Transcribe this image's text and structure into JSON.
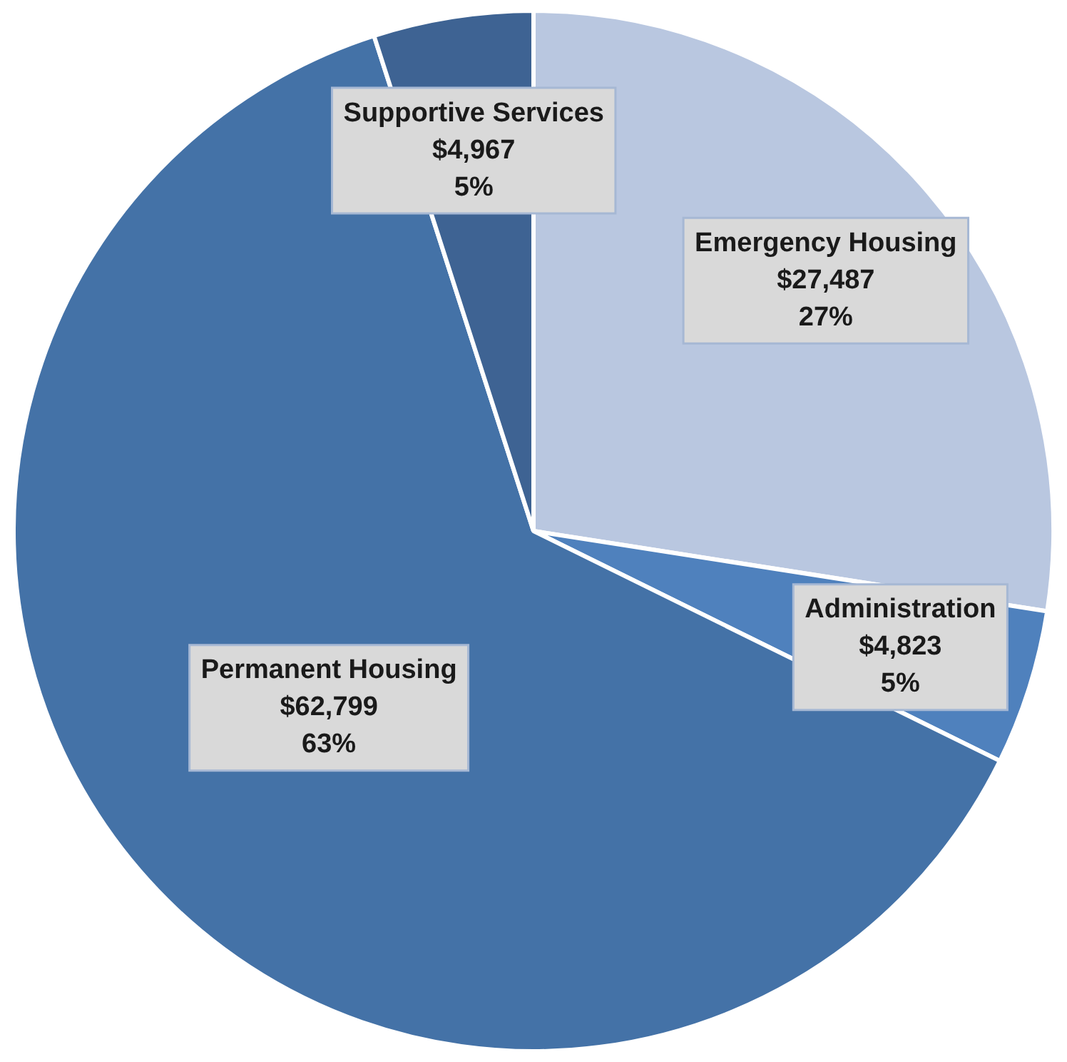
{
  "chart_data": {
    "type": "pie",
    "categories": [
      "Emergency Housing",
      "Administration",
      "Permanent Housing",
      "Supportive Services"
    ],
    "values": [
      27487,
      4823,
      62799,
      4967
    ],
    "value_labels": [
      "$27,487\n27%",
      "$4,823\n5%",
      "$62,799\n63%",
      "$4,967\n5%"
    ],
    "colors": [
      "#b9c7e0",
      "#4f81bd",
      "#4472a7",
      "#3e6393"
    ],
    "legend": false
  }
}
